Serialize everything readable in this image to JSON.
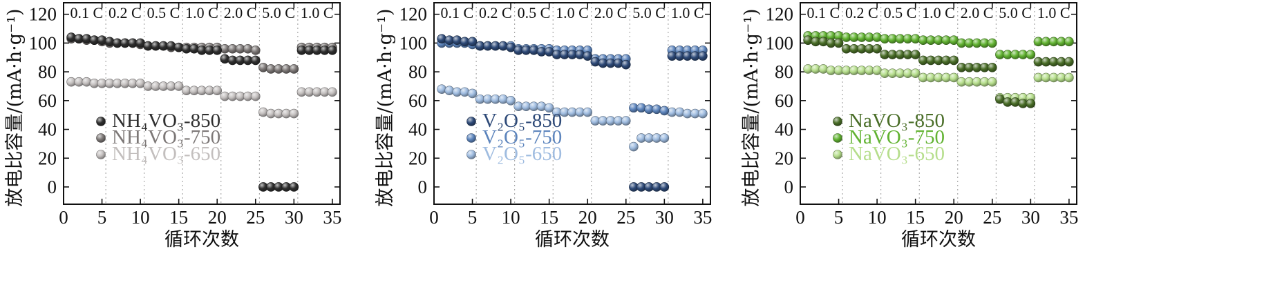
{
  "chart_data": [
    {
      "type": "scatter",
      "xlabel": "循环次数",
      "ylabel": "放电比容量/(mA·h·g⁻¹)",
      "xlim": [
        0,
        36
      ],
      "ylim": [
        -12,
        128
      ],
      "xticks": [
        "0",
        "5",
        "10",
        "15",
        "20",
        "25",
        "30",
        "35"
      ],
      "yticks": [
        "0",
        "20",
        "40",
        "60",
        "80",
        "100",
        "120"
      ],
      "rate_labels": [
        "0.1 C",
        "0.2 C",
        "0.5 C",
        "1.0 C",
        "2.0 C",
        "5.0 C",
        "1.0 C"
      ],
      "series": [
        {
          "name": "NH₄VO₃-850",
          "color": "#2f2f2f",
          "x": [
            1,
            2,
            3,
            4,
            5,
            6,
            7,
            8,
            9,
            10,
            11,
            12,
            13,
            14,
            15,
            16,
            17,
            18,
            19,
            20,
            21,
            22,
            23,
            24,
            25,
            26,
            27,
            28,
            29,
            30,
            31,
            32,
            33,
            34,
            35
          ],
          "y": [
            104,
            103,
            103,
            102,
            102,
            101,
            100,
            100,
            100,
            100,
            98,
            98,
            98,
            98,
            97,
            96,
            96,
            95,
            95,
            95,
            89,
            88,
            88,
            88,
            88,
            0,
            0,
            0,
            0,
            0,
            95,
            95,
            95,
            95,
            95
          ]
        },
        {
          "name": "NH₄VO₃-750",
          "color": "#7d7877",
          "x": [
            1,
            2,
            3,
            4,
            5,
            6,
            7,
            8,
            9,
            10,
            11,
            12,
            13,
            14,
            15,
            16,
            17,
            18,
            19,
            20,
            21,
            22,
            23,
            24,
            25,
            26,
            27,
            28,
            29,
            30,
            31,
            32,
            33,
            34,
            35
          ],
          "y": [
            103,
            103,
            102,
            102,
            101,
            100,
            100,
            100,
            100,
            99,
            98,
            98,
            98,
            97,
            97,
            97,
            97,
            97,
            97,
            97,
            96,
            96,
            96,
            96,
            95,
            83,
            82,
            82,
            82,
            82,
            97,
            97,
            97,
            97,
            97
          ]
        },
        {
          "name": "NH₄VO₃-650",
          "color": "#c3bfbe",
          "x": [
            1,
            2,
            3,
            4,
            5,
            6,
            7,
            8,
            9,
            10,
            11,
            12,
            13,
            14,
            15,
            16,
            17,
            18,
            19,
            20,
            21,
            22,
            23,
            24,
            25,
            26,
            27,
            28,
            29,
            30,
            31,
            32,
            33,
            34,
            35
          ],
          "y": [
            73,
            73,
            73,
            72,
            72,
            72,
            72,
            72,
            72,
            72,
            70,
            70,
            70,
            70,
            70,
            67,
            67,
            67,
            67,
            67,
            63,
            63,
            63,
            63,
            63,
            52,
            51,
            51,
            51,
            51,
            66,
            66,
            66,
            66,
            66
          ]
        }
      ]
    },
    {
      "type": "scatter",
      "xlabel": "循环次数",
      "ylabel": "放电比容量/(mA·h·g⁻¹)",
      "xlim": [
        0,
        36
      ],
      "ylim": [
        -12,
        128
      ],
      "xticks": [
        "0",
        "5",
        "10",
        "15",
        "20",
        "25",
        "30",
        "35"
      ],
      "yticks": [
        "0",
        "20",
        "40",
        "60",
        "80",
        "100",
        "120"
      ],
      "rate_labels": [
        "0.1 C",
        "0.2 C",
        "0.5 C",
        "1.0 C",
        "2.0 C",
        "5.0 C",
        "1.0 C"
      ],
      "series": [
        {
          "name": "V₂O₅-850",
          "color": "#2e4a78",
          "x": [
            1,
            2,
            3,
            4,
            5,
            6,
            7,
            8,
            9,
            10,
            11,
            12,
            13,
            14,
            15,
            16,
            17,
            18,
            19,
            20,
            21,
            22,
            23,
            24,
            25,
            26,
            27,
            28,
            29,
            30,
            31,
            32,
            33,
            34,
            35
          ],
          "y": [
            103,
            102,
            102,
            101,
            101,
            98,
            98,
            98,
            98,
            97,
            95,
            95,
            95,
            94,
            94,
            92,
            92,
            92,
            92,
            91,
            87,
            86,
            86,
            86,
            85,
            0,
            0,
            0,
            0,
            0,
            91,
            91,
            91,
            91,
            91
          ]
        },
        {
          "name": "V₂O₅-750",
          "color": "#5d85bd",
          "x": [
            1,
            2,
            3,
            4,
            5,
            6,
            7,
            8,
            9,
            10,
            11,
            12,
            13,
            14,
            15,
            16,
            17,
            18,
            19,
            20,
            21,
            22,
            23,
            24,
            25,
            26,
            27,
            28,
            29,
            30,
            31,
            32,
            33,
            34,
            35
          ],
          "y": [
            100,
            100,
            100,
            100,
            99,
            98,
            98,
            98,
            98,
            98,
            96,
            96,
            96,
            96,
            96,
            95,
            95,
            95,
            95,
            95,
            89,
            89,
            89,
            89,
            89,
            55,
            55,
            54,
            54,
            53,
            95,
            95,
            95,
            95,
            95
          ]
        },
        {
          "name": "V₂O₅-650",
          "color": "#9fbce0",
          "x": [
            1,
            2,
            3,
            4,
            5,
            6,
            7,
            8,
            9,
            10,
            11,
            12,
            13,
            14,
            15,
            16,
            17,
            18,
            19,
            20,
            21,
            22,
            23,
            24,
            25,
            26,
            27,
            28,
            29,
            30,
            31,
            32,
            33,
            34,
            35
          ],
          "y": [
            68,
            67,
            66,
            66,
            65,
            61,
            61,
            61,
            61,
            60,
            56,
            56,
            56,
            56,
            55,
            52,
            52,
            52,
            52,
            52,
            46,
            46,
            46,
            46,
            46,
            28,
            34,
            34,
            34,
            34,
            52,
            52,
            51,
            51,
            51
          ]
        }
      ]
    },
    {
      "type": "scatter",
      "xlabel": "循环次数",
      "ylabel": "放电比容量/(mA·h·g⁻¹)",
      "xlim": [
        0,
        36
      ],
      "ylim": [
        -12,
        128
      ],
      "xticks": [
        "0",
        "5",
        "10",
        "15",
        "20",
        "25",
        "30",
        "35"
      ],
      "yticks": [
        "0",
        "20",
        "40",
        "60",
        "80",
        "100",
        "120"
      ],
      "rate_labels": [
        "0.1 C",
        "0.2 C",
        "0.5 C",
        "1.0 C",
        "2.0 C",
        "5.0 C",
        "1.0 C"
      ],
      "series": [
        {
          "name": "NaVO₃-850",
          "color": "#4a6e28",
          "x": [
            1,
            2,
            3,
            4,
            5,
            6,
            7,
            8,
            9,
            10,
            11,
            12,
            13,
            14,
            15,
            16,
            17,
            18,
            19,
            20,
            21,
            22,
            23,
            24,
            25,
            26,
            27,
            28,
            29,
            30,
            31,
            32,
            33,
            34,
            35
          ],
          "y": [
            102,
            101,
            101,
            100,
            100,
            96,
            96,
            96,
            96,
            96,
            92,
            92,
            92,
            92,
            92,
            88,
            88,
            88,
            88,
            88,
            83,
            83,
            83,
            83,
            83,
            61,
            59,
            59,
            58,
            58,
            87,
            87,
            87,
            87,
            87
          ]
        },
        {
          "name": "NaVO₃-750",
          "color": "#62b332",
          "x": [
            1,
            2,
            3,
            4,
            5,
            6,
            7,
            8,
            9,
            10,
            11,
            12,
            13,
            14,
            15,
            16,
            17,
            18,
            19,
            20,
            21,
            22,
            23,
            24,
            25,
            26,
            27,
            28,
            29,
            30,
            31,
            32,
            33,
            34,
            35
          ],
          "y": [
            105,
            105,
            105,
            105,
            105,
            104,
            104,
            104,
            104,
            104,
            103,
            103,
            103,
            103,
            103,
            102,
            102,
            102,
            102,
            102,
            100,
            100,
            100,
            100,
            100,
            92,
            92,
            92,
            92,
            92,
            101,
            101,
            101,
            101,
            101
          ]
        },
        {
          "name": "NaVO₃-650",
          "color": "#b6de8c",
          "x": [
            1,
            2,
            3,
            4,
            5,
            6,
            7,
            8,
            9,
            10,
            11,
            12,
            13,
            14,
            15,
            16,
            17,
            18,
            19,
            20,
            21,
            22,
            23,
            24,
            25,
            26,
            27,
            28,
            29,
            30,
            31,
            32,
            33,
            34,
            35
          ],
          "y": [
            82,
            82,
            82,
            81,
            81,
            81,
            81,
            81,
            81,
            81,
            79,
            79,
            79,
            79,
            79,
            76,
            76,
            76,
            76,
            76,
            73,
            73,
            73,
            73,
            73,
            62,
            62,
            62,
            62,
            62,
            76,
            76,
            76,
            76,
            76
          ]
        }
      ]
    }
  ]
}
